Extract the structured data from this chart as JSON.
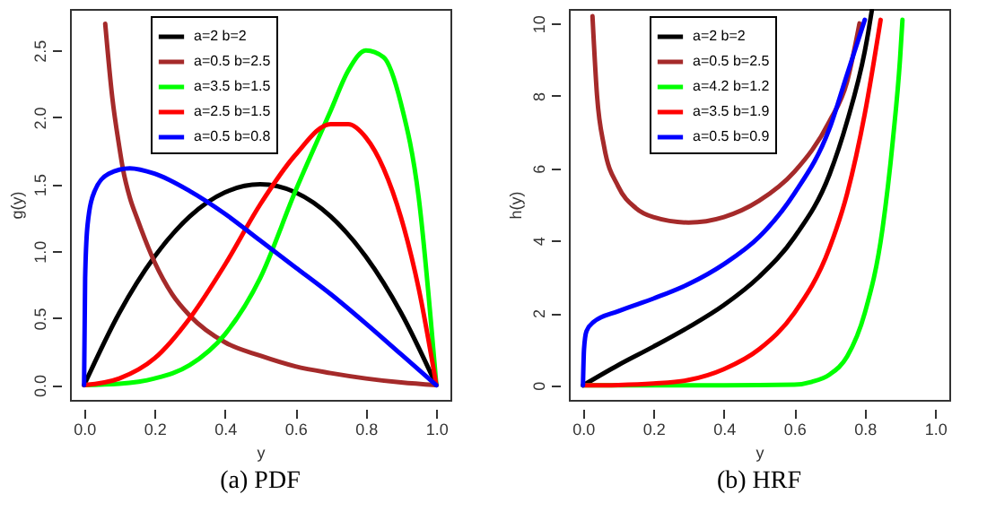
{
  "chart_data": [
    {
      "type": "line",
      "xlabel": "y",
      "ylabel": "g(y)",
      "annotations": [
        "(a) PDF"
      ],
      "legend": "top",
      "grid": false,
      "marker": "none",
      "line_style": "solid",
      "xlim": [
        -0.04,
        1.04
      ],
      "ylim": [
        -0.11,
        2.81
      ],
      "xticks": [
        {
          "value": 0,
          "label": "0.0"
        },
        {
          "value": 0.2,
          "label": "0.2"
        },
        {
          "value": 0.4,
          "label": "0.4"
        },
        {
          "value": 0.6,
          "label": "0.6"
        },
        {
          "value": 0.8,
          "label": "0.8"
        },
        {
          "value": 1,
          "label": "1.0"
        }
      ],
      "yticks": [
        {
          "value": 0,
          "label": "0.0"
        },
        {
          "value": 0.5,
          "label": "0.5"
        },
        {
          "value": 1,
          "label": "1.0"
        },
        {
          "value": 1.5,
          "label": "1.5"
        },
        {
          "value": 2,
          "label": "2.0"
        },
        {
          "value": 2.5,
          "label": "2.5"
        }
      ],
      "series": [
        {
          "name": "a=2 b=2",
          "color": "#000000",
          "x": [
            0,
            0.1,
            0.2,
            0.3,
            0.4,
            0.5,
            0.6,
            0.7,
            0.8,
            0.9,
            1
          ],
          "values": [
            0,
            0.54,
            0.96,
            1.26,
            1.44,
            1.5,
            1.44,
            1.26,
            0.96,
            0.54,
            0
          ]
        },
        {
          "name": "a=0.5 b=2.5",
          "color": "#a52a2a",
          "x": [
            0.06,
            0.08,
            0.1,
            0.11,
            0.13,
            0.15,
            0.2,
            0.25,
            0.3,
            0.4,
            0.5,
            0.6,
            0.7,
            0.8,
            0.9,
            1
          ],
          "values": [
            2.7,
            2.15,
            1.78,
            1.62,
            1.4,
            1.25,
            0.92,
            0.68,
            0.52,
            0.32,
            0.22,
            0.14,
            0.09,
            0.05,
            0.02,
            0
          ]
        },
        {
          "name": "a=3.5 b=1.5",
          "color": "#00ff00",
          "x": [
            0,
            0.1,
            0.2,
            0.3,
            0.4,
            0.5,
            0.6,
            0.7,
            0.75,
            0.8,
            0.85,
            0.9,
            0.95,
            1
          ],
          "values": [
            0,
            0.01,
            0.05,
            0.15,
            0.38,
            0.8,
            1.45,
            2.05,
            2.35,
            2.5,
            2.45,
            2.1,
            1.4,
            0
          ]
        },
        {
          "name": "a=2.5 b=1.5",
          "color": "#ff0000",
          "x": [
            0,
            0.1,
            0.2,
            0.3,
            0.4,
            0.5,
            0.6,
            0.7,
            0.75,
            0.8,
            0.85,
            0.9,
            0.95,
            1
          ],
          "values": [
            0,
            0.05,
            0.2,
            0.5,
            0.9,
            1.35,
            1.72,
            1.95,
            1.95,
            1.85,
            1.62,
            1.25,
            0.72,
            0
          ]
        },
        {
          "name": "a=0.5 b=0.8",
          "color": "#0000ff",
          "x": [
            0,
            0.003,
            0.01,
            0.03,
            0.07,
            0.13,
            0.2,
            0.3,
            0.4,
            0.5,
            0.6,
            0.7,
            0.8,
            0.9,
            1
          ],
          "values": [
            0,
            0.8,
            1.2,
            1.45,
            1.58,
            1.62,
            1.58,
            1.45,
            1.28,
            1.08,
            0.88,
            0.68,
            0.46,
            0.23,
            0
          ]
        }
      ]
    },
    {
      "type": "line",
      "xlabel": "y",
      "ylabel": "h(y)",
      "annotations": [
        "(b) HRF"
      ],
      "legend": "top",
      "grid": false,
      "marker": "none",
      "line_style": "solid",
      "xlim": [
        -0.04,
        1.04
      ],
      "ylim": [
        -0.4,
        10.4
      ],
      "xticks": [
        {
          "value": 0,
          "label": "0.0"
        },
        {
          "value": 0.2,
          "label": "0.2"
        },
        {
          "value": 0.4,
          "label": "0.4"
        },
        {
          "value": 0.6,
          "label": "0.6"
        },
        {
          "value": 0.8,
          "label": "0.8"
        },
        {
          "value": 1,
          "label": "1.0"
        }
      ],
      "yticks": [
        0,
        2,
        4,
        6,
        8,
        10
      ],
      "series": [
        {
          "name": "a=2 b=2",
          "color": "#000000",
          "x": [
            0,
            0.1,
            0.2,
            0.3,
            0.4,
            0.5,
            0.6,
            0.7,
            0.75,
            0.8,
            0.81,
            0.82
          ],
          "values": [
            0,
            0.56,
            1.07,
            1.61,
            2.22,
            3.0,
            4.09,
            5.83,
            7.3,
            9.23,
            9.76,
            10.36
          ]
        },
        {
          "name": "a=0.5 b=2.5",
          "color": "#a52a2a",
          "x": [
            0.027,
            0.04,
            0.06,
            0.1,
            0.15,
            0.2,
            0.3,
            0.4,
            0.5,
            0.6,
            0.7,
            0.75,
            0.785
          ],
          "values": [
            10.2,
            8.0,
            6.6,
            5.5,
            4.9,
            4.65,
            4.5,
            4.65,
            5.1,
            5.9,
            7.3,
            8.4,
            10.0
          ]
        },
        {
          "name": "a=4.2 b=1.2",
          "color": "#00ff00",
          "x": [
            0,
            0.2,
            0.4,
            0.6,
            0.65,
            0.7,
            0.75,
            0.8,
            0.85,
            0.88,
            0.9,
            0.907
          ],
          "values": [
            0,
            0,
            0,
            0.02,
            0.1,
            0.3,
            0.8,
            2.0,
            4.3,
            6.8,
            9.0,
            10.1
          ]
        },
        {
          "name": "a=3.5 b=1.9",
          "color": "#ff0000",
          "x": [
            0,
            0.1,
            0.2,
            0.3,
            0.4,
            0.5,
            0.6,
            0.7,
            0.75,
            0.8,
            0.845
          ],
          "values": [
            0,
            0.01,
            0.05,
            0.15,
            0.45,
            1.0,
            2.0,
            3.8,
            5.3,
            7.5,
            10.1
          ]
        },
        {
          "name": "a=0.5 b=0.9",
          "color": "#0000ff",
          "x": [
            0,
            0.003,
            0.01,
            0.03,
            0.1,
            0.2,
            0.3,
            0.4,
            0.5,
            0.6,
            0.7,
            0.75,
            0.8
          ],
          "values": [
            0,
            1.0,
            1.5,
            1.75,
            2.05,
            2.4,
            2.8,
            3.35,
            4.1,
            5.3,
            7.1,
            8.6,
            10.1
          ]
        }
      ]
    }
  ]
}
